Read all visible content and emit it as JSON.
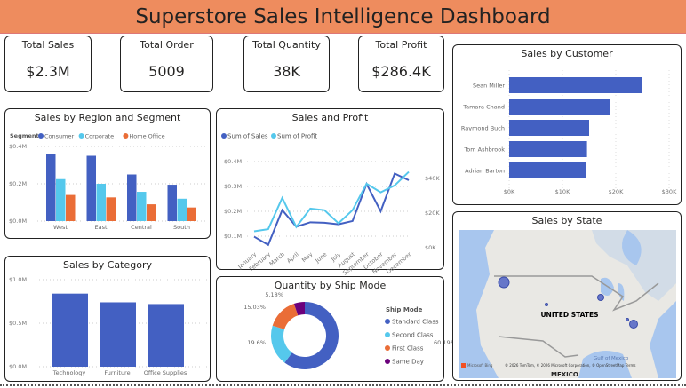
{
  "title": "Superstore Sales Intelligence Dashboard",
  "kpis": [
    {
      "label": "Total Sales",
      "value": "$2.3M"
    },
    {
      "label": "Total Order",
      "value": "5009"
    },
    {
      "label": "Total Quantity",
      "value": "38K"
    },
    {
      "label": "Total Profit",
      "value": "$286.4K"
    }
  ],
  "colors": {
    "header": "#EE8C5E",
    "blue": "#4360C2",
    "cyan": "#55C8EC",
    "orange": "#EA6D37",
    "purple": "#6B007B"
  },
  "chart_data": [
    {
      "type": "bar",
      "title": "Sales by Region and Segment",
      "legend_title": "Segment",
      "categories": [
        "West",
        "East",
        "Central",
        "South"
      ],
      "series": [
        {
          "name": "Consumer",
          "values": [
            0.36,
            0.35,
            0.25,
            0.195
          ]
        },
        {
          "name": "Corporate",
          "values": [
            0.225,
            0.2,
            0.157,
            0.12
          ]
        },
        {
          "name": "Home Office",
          "values": [
            0.14,
            0.127,
            0.09,
            0.073
          ]
        }
      ],
      "yticks": [
        "$0.0M",
        "$0.2M",
        "$0.4M"
      ],
      "ylim": [
        0,
        0.4
      ],
      "legend": "top-left"
    },
    {
      "type": "line",
      "title": "Sales and Profit",
      "categories": [
        "January",
        "February",
        "March",
        "April",
        "May",
        "June",
        "July",
        "August",
        "September",
        "October",
        "November",
        "December"
      ],
      "series": [
        {
          "name": "Sum of Sales",
          "axis": "left",
          "values": [
            0.098,
            0.065,
            0.205,
            0.138,
            0.156,
            0.154,
            0.148,
            0.161,
            0.31,
            0.2,
            0.352,
            0.325
          ]
        },
        {
          "name": "Sum of Profit",
          "axis": "right",
          "values": [
            9500,
            10700,
            28800,
            12000,
            22600,
            21700,
            14100,
            21700,
            37000,
            32000,
            36000,
            43800
          ]
        }
      ],
      "yticks_left": [
        "$0.1M",
        "$0.2M",
        "$0.3M",
        "$0.4M"
      ],
      "yticks_right": [
        "$0K",
        "$20K",
        "$40K"
      ],
      "legend": "top-left"
    },
    {
      "type": "bar",
      "orientation": "horizontal",
      "title": "Sales by Customer",
      "categories": [
        "Sean Miller",
        "Tamara Chand",
        "Raymond Buch",
        "Tom Ashbrook",
        "Adrian Barton"
      ],
      "values": [
        25000,
        19000,
        15000,
        14600,
        14500
      ],
      "xticks": [
        "$0K",
        "$10K",
        "$20K",
        "$30K"
      ],
      "xlim": [
        0,
        30000
      ]
    },
    {
      "type": "bar",
      "title": "Sales by Category",
      "categories": [
        "Technology",
        "Furniture",
        "Office Supplies"
      ],
      "values": [
        0.84,
        0.74,
        0.72
      ],
      "yticks": [
        "$0.0M",
        "$0.5M",
        "$1.0M"
      ],
      "ylim": [
        0,
        1
      ]
    },
    {
      "type": "pie",
      "title": "Quantity by Ship Mode",
      "legend_title": "Ship Mode",
      "categories": [
        "Standard Class",
        "Second Class",
        "First Class",
        "Same Day"
      ],
      "values": [
        60.19,
        19.6,
        15.03,
        5.18
      ],
      "labels": [
        "60.19%",
        "19.6%",
        "15.03%",
        "5.18%"
      ],
      "legend": "right"
    }
  ],
  "map": {
    "title": "Sales by State",
    "country_label": "UNITED STATES",
    "labels": [
      "Gulf of Mexico",
      "MEXICO"
    ],
    "attribution": "© 2026 TomTom, © 2026 Microsoft Corporation, © OpenStreetMap  Terms",
    "logo": "Microsoft Bing"
  }
}
